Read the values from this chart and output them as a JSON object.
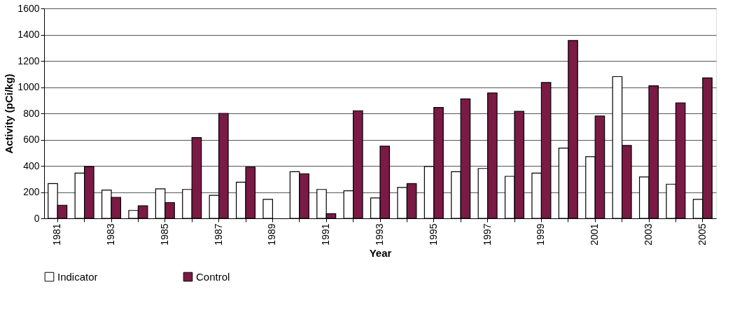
{
  "chart_data": {
    "type": "bar",
    "xlabel": "Year",
    "ylabel": "Activity (pCi/kg)",
    "categories": [
      "1981",
      null,
      "1983",
      null,
      "1985",
      null,
      "1987",
      null,
      "1989",
      null,
      "1991",
      null,
      "1993",
      null,
      "1995",
      null,
      "1997",
      null,
      "1999",
      null,
      "2001",
      null,
      "2003",
      null,
      "2005"
    ],
    "series": [
      {
        "name": "Indicator",
        "color": "#ffffff",
        "values": [
          265,
          345,
          215,
          60,
          225,
          220,
          175,
          275,
          145,
          355,
          220,
          210,
          155,
          235,
          395,
          355,
          380,
          320,
          345,
          535,
          470,
          1080,
          315,
          260,
          145
        ]
      },
      {
        "name": "Control",
        "color": "#7a1a45",
        "values": [
          100,
          395,
          160,
          95,
          120,
          615,
          800,
          390,
          null,
          340,
          35,
          820,
          550,
          265,
          845,
          910,
          955,
          815,
          1035,
          1355,
          780,
          555,
          1010,
          880,
          1070
        ]
      }
    ],
    "ylim": [
      0,
      1600
    ],
    "yticks": [
      0,
      200,
      400,
      600,
      800,
      1000,
      1200,
      1400,
      1600
    ],
    "grid": "y",
    "legend": "bottom"
  }
}
